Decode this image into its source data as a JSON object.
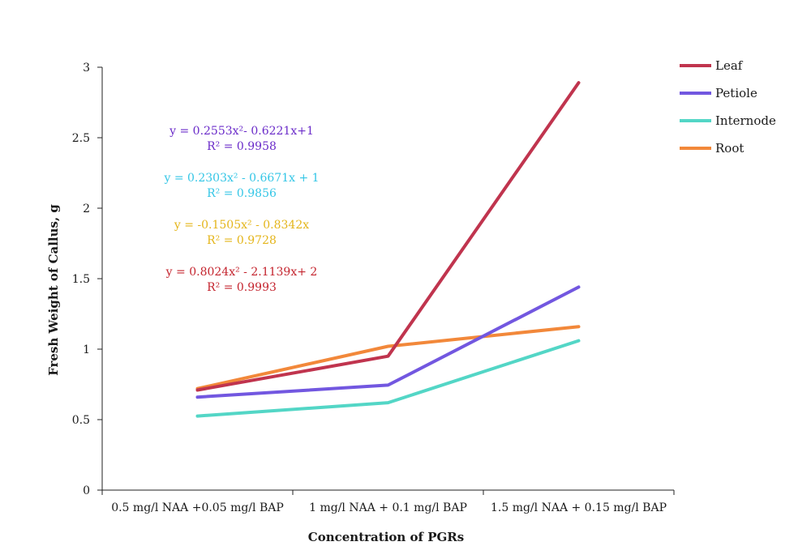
{
  "chart_data": {
    "type": "line",
    "title": "",
    "xlabel": "Concentration of PGRs",
    "ylabel": "Fresh Weight of Callus, g",
    "ylim": [
      0,
      3
    ],
    "yticks": [
      "0",
      "0.5",
      "1",
      "1.5",
      "2",
      "2.5",
      "3"
    ],
    "categories": [
      "0.5 mg/l NAA +0.05 mg/l BAP",
      "1 mg/l NAA + 0.1 mg/l BAP",
      "1.5 mg/l NAA + 0.15 mg/l BAP"
    ],
    "grid": false,
    "legend_position": "top-right",
    "series": [
      {
        "name": "Leaf",
        "color": "#c0344e",
        "values": [
          0.71,
          0.95,
          2.89
        ]
      },
      {
        "name": "Petiole",
        "color": "#7257e0",
        "values": [
          0.66,
          0.745,
          1.44
        ]
      },
      {
        "name": "Internode",
        "color": "#53d6c6",
        "values": [
          0.525,
          0.62,
          1.06
        ]
      },
      {
        "name": "Root",
        "color": "#f2883a",
        "values": [
          0.72,
          1.02,
          1.16
        ]
      }
    ],
    "annotations": [
      {
        "line1": "y = 0.2553x²- 0.6221x+1",
        "line2": "R² = 0.9958",
        "color": "#6a2bc9"
      },
      {
        "line1": "y = 0.2303x² - 0.6671x + 1",
        "line2": "R² = 0.9856",
        "color": "#34c6e6"
      },
      {
        "line1": "y = -0.1505x² - 0.8342x",
        "line2": "R² = 0.9728",
        "color": "#e4b51a"
      },
      {
        "line1": "y = 0.8024x² - 2.1139x+ 2",
        "line2": "R² = 0.9993",
        "color": "#c4242e"
      }
    ]
  }
}
